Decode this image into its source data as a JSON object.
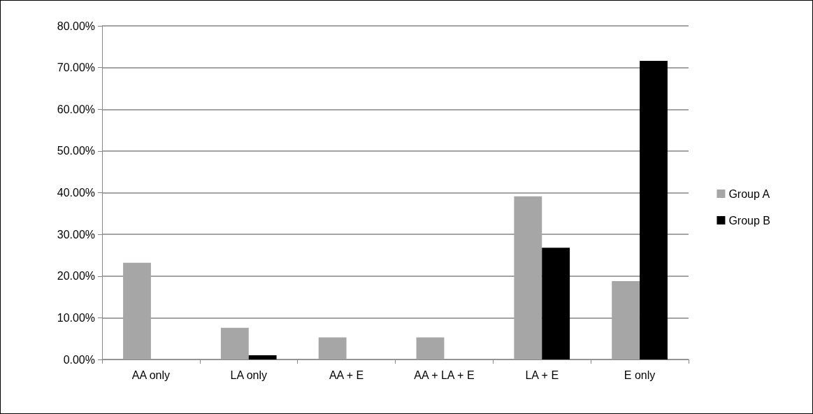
{
  "chart_data": {
    "type": "bar",
    "categories": [
      "AA only",
      "LA only",
      "AA + E",
      "AA + LA + E",
      "LA + E",
      "E only"
    ],
    "series": [
      {
        "name": "Group A",
        "color": "#a6a6a6",
        "values": [
          23.2,
          7.6,
          5.3,
          5.3,
          39.1,
          18.8
        ]
      },
      {
        "name": "Group B",
        "color": "#000000",
        "values": [
          0,
          1.0,
          0,
          0,
          26.8,
          71.6
        ]
      }
    ],
    "ylim": [
      0,
      80
    ],
    "yticks": [
      {
        "value": 0,
        "label": "0.00%"
      },
      {
        "value": 10,
        "label": "10.00%"
      },
      {
        "value": 20,
        "label": "20.00%"
      },
      {
        "value": 30,
        "label": "30.00%"
      },
      {
        "value": 40,
        "label": "40.00%"
      },
      {
        "value": 50,
        "label": "50.00%"
      },
      {
        "value": 60,
        "label": "60.00%"
      },
      {
        "value": 70,
        "label": "70.00%"
      },
      {
        "value": 80,
        "label": "80.00%"
      }
    ],
    "grid": "y",
    "legend": "right"
  }
}
